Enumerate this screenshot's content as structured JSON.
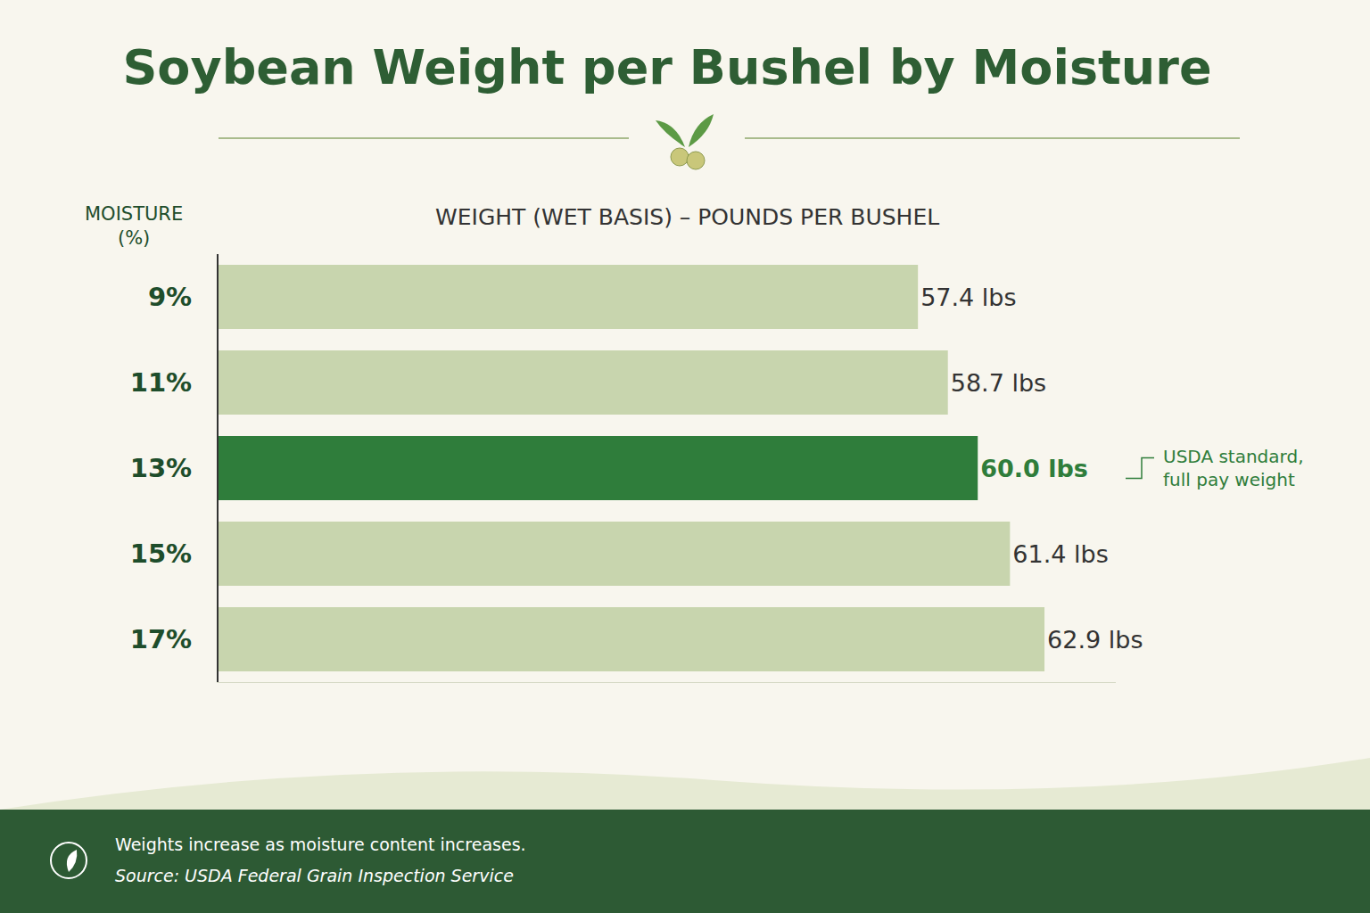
{
  "chart_data": {
    "type": "bar",
    "orientation": "horizontal",
    "title": "Soybean Weight per Bushel by Moisture",
    "y_label": "MOISTURE (%)",
    "x_label": "WEIGHT (WET BASIS) – POUNDS PER BUSHEL",
    "categories": [
      "9%",
      "11%",
      "13%",
      "15%",
      "17%"
    ],
    "values": [
      57.4,
      58.7,
      60.0,
      61.4,
      62.9
    ],
    "value_labels": [
      "57.4 lbs",
      "58.7 lbs",
      "60.0 lbs",
      "61.4 lbs",
      "62.9 lbs"
    ],
    "colors": [
      "#c8d5ae",
      "#c8d5ae",
      "#2f7d3b",
      "#c8d5ae",
      "#c8d5ae"
    ],
    "xlim": [
      27,
      66
    ],
    "grid": false,
    "data_labels": true,
    "tick_labels": "y",
    "annotations": [
      {
        "category": "13%",
        "text": "USDA standard, full pay weight"
      }
    ],
    "footer": {
      "note": "Weights increase as moisture content increases.",
      "source": "Source: USDA Federal Grain Inspection Service"
    }
  }
}
